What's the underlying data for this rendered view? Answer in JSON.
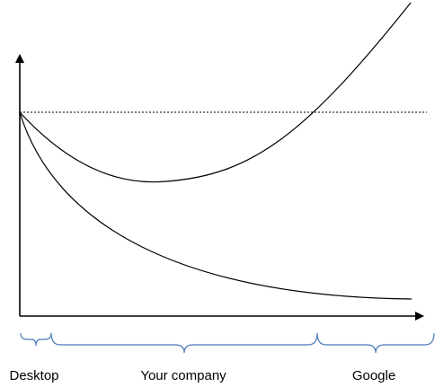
{
  "regions": [
    {
      "label": "Desktop"
    },
    {
      "label": "Your company"
    },
    {
      "label": "Google"
    }
  ],
  "colors": {
    "axis": "#000000",
    "curve": "#000000",
    "reference_line": "#000000",
    "brace": "#4a78b8"
  }
}
